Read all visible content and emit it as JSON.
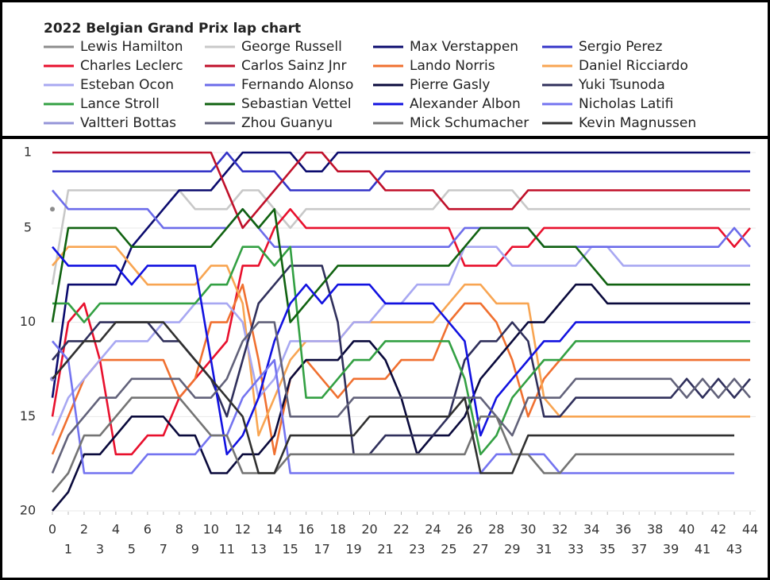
{
  "chart_data": {
    "type": "line",
    "title": "2022 Belgian Grand Prix lap chart",
    "x": [
      0,
      1,
      2,
      3,
      4,
      5,
      6,
      7,
      8,
      9,
      10,
      11,
      12,
      13,
      14,
      15,
      16,
      17,
      18,
      19,
      20,
      21,
      22,
      23,
      24,
      25,
      26,
      27,
      28,
      29,
      30,
      31,
      32,
      33,
      34,
      35,
      36,
      37,
      38,
      39,
      40,
      41,
      42,
      43,
      44
    ],
    "xlim": [
      0,
      44
    ],
    "xticks": [
      0,
      1,
      2,
      3,
      4,
      5,
      6,
      7,
      8,
      9,
      10,
      11,
      12,
      13,
      14,
      15,
      16,
      17,
      18,
      19,
      20,
      21,
      22,
      23,
      24,
      25,
      26,
      27,
      28,
      29,
      30,
      31,
      32,
      33,
      34,
      35,
      36,
      37,
      38,
      39,
      40,
      41,
      42,
      43,
      44
    ],
    "ylim": [
      20,
      1
    ],
    "yticks": [
      1,
      5,
      10,
      15,
      20
    ],
    "series": [
      {
        "name": "Lewis Hamilton",
        "color": "#8c8c8c",
        "values": [
          4,
          null,
          null,
          null,
          null,
          null,
          null,
          null,
          null,
          null,
          null,
          null,
          null,
          null,
          null,
          null,
          null,
          null,
          null,
          null,
          null,
          null,
          null,
          null,
          null,
          null,
          null,
          null,
          null,
          null,
          null,
          null,
          null,
          null,
          null,
          null,
          null,
          null,
          null,
          null,
          null,
          null,
          null,
          null,
          null
        ]
      },
      {
        "name": "George Russell",
        "color": "#c8c8c8",
        "values": [
          8,
          3,
          3,
          3,
          3,
          3,
          3,
          3,
          3,
          4,
          4,
          4,
          3,
          3,
          4,
          5,
          4,
          4,
          4,
          4,
          4,
          4,
          4,
          4,
          4,
          3,
          3,
          3,
          3,
          3,
          4,
          4,
          4,
          4,
          4,
          4,
          4,
          4,
          4,
          4,
          4,
          4,
          4,
          4,
          4
        ]
      },
      {
        "name": "Max Verstappen",
        "color": "#0b0b6e",
        "values": [
          14,
          8,
          8,
          8,
          8,
          6,
          5,
          4,
          3,
          3,
          3,
          2,
          1,
          1,
          1,
          1,
          2,
          2,
          1,
          1,
          1,
          1,
          1,
          1,
          1,
          1,
          1,
          1,
          1,
          1,
          1,
          1,
          1,
          1,
          1,
          1,
          1,
          1,
          1,
          1,
          1,
          1,
          1,
          1,
          1
        ]
      },
      {
        "name": "Sergio Perez",
        "color": "#3535c8",
        "values": [
          2,
          2,
          2,
          2,
          2,
          2,
          2,
          2,
          2,
          2,
          2,
          1,
          2,
          2,
          2,
          3,
          3,
          3,
          3,
          3,
          3,
          2,
          2,
          2,
          2,
          2,
          2,
          2,
          2,
          2,
          2,
          2,
          2,
          2,
          2,
          2,
          2,
          2,
          2,
          2,
          2,
          2,
          2,
          2,
          2
        ]
      },
      {
        "name": "Charles Leclerc",
        "color": "#e8102d",
        "values": [
          15,
          10,
          9,
          12,
          17,
          17,
          16,
          16,
          14,
          13,
          12,
          11,
          7,
          7,
          5,
          4,
          5,
          5,
          5,
          5,
          5,
          5,
          5,
          5,
          5,
          5,
          7,
          7,
          7,
          6,
          6,
          5,
          5,
          5,
          5,
          5,
          5,
          5,
          5,
          5,
          5,
          5,
          5,
          6,
          5
        ]
      },
      {
        "name": "Carlos Sainz Jnr",
        "color": "#c0102a",
        "values": [
          1,
          1,
          1,
          1,
          1,
          1,
          1,
          1,
          1,
          1,
          1,
          3,
          5,
          4,
          3,
          2,
          1,
          1,
          2,
          2,
          2,
          3,
          3,
          3,
          3,
          4,
          4,
          4,
          4,
          4,
          3,
          3,
          3,
          3,
          3,
          3,
          3,
          3,
          3,
          3,
          3,
          3,
          3,
          3,
          3
        ]
      },
      {
        "name": "Lando Norris",
        "color": "#f07030",
        "values": [
          17,
          15,
          13,
          12,
          12,
          12,
          12,
          12,
          14,
          13,
          10,
          10,
          8,
          12,
          17,
          13,
          12,
          13,
          14,
          13,
          13,
          13,
          12,
          12,
          12,
          10,
          9,
          9,
          10,
          12,
          15,
          13,
          12,
          12,
          12,
          12,
          12,
          12,
          12,
          12,
          12,
          12,
          12,
          12,
          12
        ]
      },
      {
        "name": "Daniel Ricciardo",
        "color": "#f8a552",
        "values": [
          7,
          6,
          6,
          6,
          6,
          7,
          8,
          8,
          8,
          8,
          7,
          7,
          9,
          16,
          14,
          12,
          11,
          11,
          11,
          10,
          10,
          10,
          10,
          10,
          10,
          9,
          8,
          8,
          9,
          9,
          9,
          14,
          15,
          15,
          15,
          15,
          15,
          15,
          15,
          15,
          15,
          15,
          15,
          15,
          15
        ]
      },
      {
        "name": "Esteban Ocon",
        "color": "#a8a8f2",
        "values": [
          16,
          14,
          13,
          12,
          11,
          11,
          11,
          10,
          10,
          9,
          9,
          9,
          10,
          14,
          13,
          11,
          11,
          11,
          11,
          10,
          10,
          9,
          9,
          8,
          8,
          8,
          6,
          6,
          6,
          7,
          7,
          7,
          7,
          7,
          6,
          6,
          7,
          7,
          7,
          7,
          7,
          7,
          7,
          7,
          7
        ]
      },
      {
        "name": "Fernando Alonso",
        "color": "#6c6cea",
        "values": [
          3,
          4,
          4,
          4,
          4,
          4,
          4,
          5,
          5,
          5,
          5,
          5,
          4,
          5,
          6,
          6,
          6,
          6,
          6,
          6,
          6,
          6,
          6,
          6,
          6,
          6,
          5,
          5,
          5,
          5,
          5,
          6,
          6,
          6,
          6,
          6,
          6,
          6,
          6,
          6,
          6,
          6,
          6,
          5,
          6
        ]
      },
      {
        "name": "Pierre Gasly",
        "color": "#0a0a3c",
        "values": [
          20,
          19,
          17,
          17,
          16,
          15,
          15,
          15,
          16,
          16,
          18,
          18,
          17,
          17,
          16,
          13,
          12,
          12,
          12,
          11,
          11,
          12,
          14,
          17,
          16,
          16,
          15,
          13,
          12,
          11,
          10,
          10,
          9,
          8,
          8,
          9,
          9,
          9,
          9,
          9,
          9,
          9,
          9,
          9,
          9
        ]
      },
      {
        "name": "Yuki Tsunoda",
        "color": "#30305c",
        "values": [
          12,
          11,
          11,
          10,
          10,
          10,
          10,
          11,
          11,
          12,
          13,
          15,
          12,
          9,
          8,
          7,
          7,
          7,
          10,
          17,
          17,
          16,
          16,
          16,
          16,
          15,
          12,
          11,
          11,
          10,
          11,
          15,
          15,
          14,
          14,
          14,
          14,
          14,
          14,
          14,
          13,
          14,
          13,
          14,
          13
        ]
      },
      {
        "name": "Lance Stroll",
        "color": "#33a043",
        "values": [
          9,
          9,
          10,
          9,
          9,
          9,
          9,
          9,
          9,
          9,
          8,
          8,
          6,
          6,
          7,
          6,
          14,
          14,
          13,
          12,
          12,
          11,
          11,
          11,
          11,
          11,
          13,
          17,
          16,
          14,
          13,
          12,
          12,
          11,
          11,
          11,
          11,
          11,
          11,
          11,
          11,
          11,
          11,
          11,
          11
        ]
      },
      {
        "name": "Sebastian Vettel",
        "color": "#106210",
        "values": [
          10,
          5,
          5,
          5,
          5,
          6,
          6,
          6,
          6,
          6,
          6,
          5,
          4,
          5,
          4,
          10,
          9,
          8,
          7,
          7,
          7,
          7,
          7,
          7,
          7,
          7,
          6,
          5,
          5,
          5,
          5,
          6,
          6,
          6,
          7,
          8,
          8,
          8,
          8,
          8,
          8,
          8,
          8,
          8,
          8
        ]
      },
      {
        "name": "Alexander Albon",
        "color": "#1212e0",
        "values": [
          6,
          7,
          7,
          7,
          7,
          8,
          7,
          7,
          7,
          7,
          12,
          17,
          16,
          14,
          11,
          9,
          8,
          9,
          8,
          8,
          8,
          9,
          9,
          9,
          9,
          10,
          11,
          16,
          14,
          13,
          12,
          11,
          11,
          10,
          10,
          10,
          10,
          10,
          10,
          10,
          10,
          10,
          10,
          10,
          10
        ]
      },
      {
        "name": "Nicholas Latifi",
        "color": "#7474f0",
        "values": [
          11,
          12,
          18,
          18,
          18,
          18,
          17,
          17,
          17,
          17,
          16,
          16,
          14,
          13,
          12,
          18,
          18,
          18,
          18,
          18,
          18,
          18,
          18,
          18,
          18,
          18,
          18,
          18,
          17,
          17,
          17,
          17,
          18,
          18,
          18,
          18,
          18,
          18,
          18,
          18,
          18,
          18,
          18,
          18,
          null
        ]
      },
      {
        "name": "Valtteri Bottas",
        "color": "#9595d8",
        "values": [
          13,
          null,
          null,
          null,
          null,
          null,
          null,
          null,
          null,
          null,
          null,
          null,
          null,
          null,
          null,
          null,
          null,
          null,
          null,
          null,
          null,
          null,
          null,
          null,
          null,
          null,
          null,
          null,
          null,
          null,
          null,
          null,
          null,
          null,
          null,
          null,
          null,
          null,
          null,
          null,
          null,
          null,
          null,
          null,
          null
        ]
      },
      {
        "name": "Zhou Guanyu",
        "color": "#62627a",
        "values": [
          18,
          16,
          15,
          14,
          14,
          13,
          13,
          13,
          13,
          14,
          14,
          13,
          11,
          10,
          10,
          15,
          15,
          15,
          15,
          14,
          14,
          14,
          14,
          14,
          14,
          14,
          14,
          14,
          15,
          16,
          14,
          14,
          14,
          13,
          13,
          13,
          13,
          13,
          13,
          13,
          14,
          13,
          14,
          13,
          14
        ]
      },
      {
        "name": "Mick Schumacher",
        "color": "#747474",
        "values": [
          19,
          18,
          16,
          16,
          15,
          14,
          14,
          14,
          14,
          15,
          16,
          16,
          18,
          18,
          18,
          17,
          17,
          17,
          17,
          17,
          17,
          17,
          17,
          17,
          17,
          17,
          17,
          15,
          15,
          17,
          17,
          18,
          18,
          17,
          17,
          17,
          17,
          17,
          17,
          17,
          17,
          17,
          17,
          17,
          null
        ]
      },
      {
        "name": "Kevin Magnussen",
        "color": "#303030",
        "values": [
          13,
          12,
          11,
          11,
          10,
          10,
          10,
          10,
          11,
          12,
          13,
          14,
          15,
          18,
          18,
          16,
          16,
          16,
          16,
          16,
          15,
          15,
          15,
          15,
          15,
          15,
          14,
          18,
          18,
          18,
          16,
          16,
          16,
          16,
          16,
          16,
          16,
          16,
          16,
          16,
          16,
          16,
          16,
          16,
          null
        ]
      }
    ]
  }
}
